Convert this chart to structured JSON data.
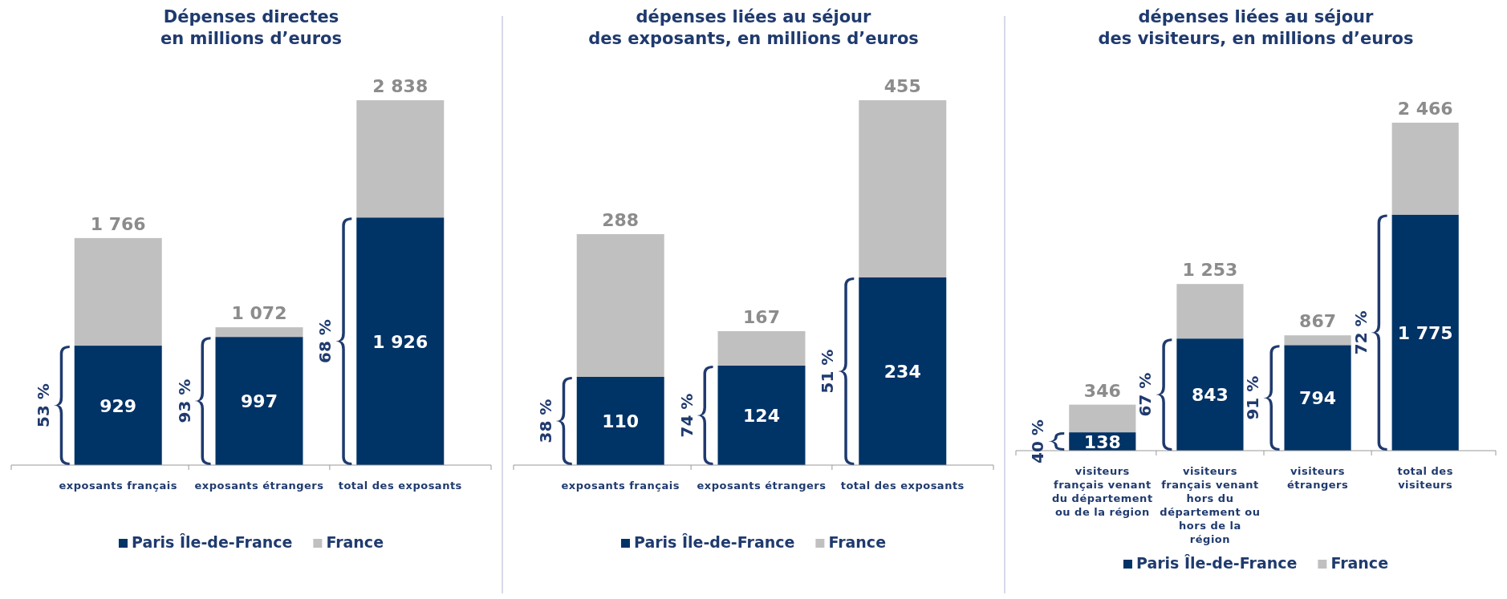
{
  "chart_data": [
    {
      "type": "bar",
      "stacked": true,
      "title": "Dépenses directes\nen millions d’euros",
      "categories": [
        "exposants français",
        "exposants étrangers",
        "total des exposants"
      ],
      "series": [
        {
          "name": "Paris Île-de-France",
          "color": "#003366",
          "values": [
            929,
            997,
            1926
          ],
          "value_labels": [
            "929",
            "997",
            "1 926"
          ]
        },
        {
          "name": "France",
          "color": "#c0c0c0",
          "values": [
            837,
            75,
            912
          ]
        }
      ],
      "totals": [
        "1 766",
        "1 072",
        "2 838"
      ],
      "legend": "bottom",
      "annotations": [
        "53 %",
        "93 %",
        "68 %"
      ]
    },
    {
      "type": "bar",
      "stacked": true,
      "title": "dépenses liées au séjour\ndes exposants, en millions d’euros",
      "categories": [
        "exposants français",
        "exposants étrangers",
        "total des exposants"
      ],
      "series": [
        {
          "name": "Paris Île-de-France",
          "color": "#003366",
          "values": [
            110,
            124,
            234
          ],
          "value_labels": [
            "110",
            "124",
            "234"
          ]
        },
        {
          "name": "France",
          "color": "#c0c0c0",
          "values": [
            178,
            43,
            221
          ]
        }
      ],
      "totals": [
        "288",
        "167",
        "455"
      ],
      "legend": "bottom",
      "annotations": [
        "38 %",
        "74 %",
        "51 %"
      ]
    },
    {
      "type": "bar",
      "stacked": true,
      "title": "dépenses liées au séjour\ndes visiteurs, en millions d’euros",
      "categories": [
        "visiteurs français venant du département ou de la région",
        "visiteurs français venant hors du département ou hors de la région",
        "visiteurs étrangers",
        "total des visiteurs"
      ],
      "series": [
        {
          "name": "Paris Île-de-France",
          "color": "#003366",
          "values": [
            138,
            843,
            794,
            1775
          ],
          "value_labels": [
            "138",
            "843",
            "794",
            "1 775"
          ]
        },
        {
          "name": "France",
          "color": "#c0c0c0",
          "values": [
            208,
            410,
            73,
            691
          ]
        }
      ],
      "totals": [
        "346",
        "1 253",
        "867",
        "2 466"
      ],
      "legend": "bottom",
      "annotations": [
        "40 %",
        "67 %",
        "91 %",
        "72 %"
      ]
    }
  ]
}
